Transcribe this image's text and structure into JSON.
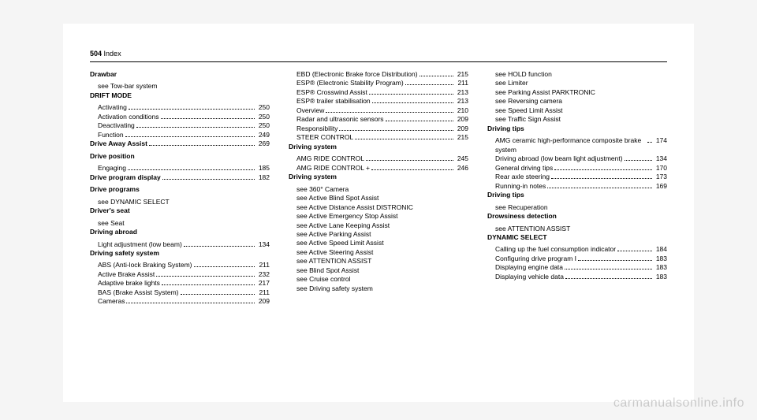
{
  "header": {
    "page": "504",
    "section": "Index"
  },
  "watermark": "carmanualsonline.info",
  "col1": [
    {
      "type": "heading",
      "text": "Drawbar"
    },
    {
      "type": "see",
      "text": "see Tow-bar system"
    },
    {
      "type": "heading",
      "text": "DRIFT MODE"
    },
    {
      "type": "sub",
      "label": "Activating",
      "page": "250"
    },
    {
      "type": "sub",
      "label": "Activation conditions",
      "page": "250"
    },
    {
      "type": "sub",
      "label": "Deactivating",
      "page": "250"
    },
    {
      "type": "sub",
      "label": "Function",
      "page": "249"
    },
    {
      "type": "headline",
      "label": "Drive Away Assist",
      "page": "269"
    },
    {
      "type": "heading",
      "text": "Drive position"
    },
    {
      "type": "sub",
      "label": "Engaging",
      "page": "185"
    },
    {
      "type": "headline",
      "label": "Drive program display",
      "page": "182"
    },
    {
      "type": "heading",
      "text": "Drive programs"
    },
    {
      "type": "see",
      "text": "see DYNAMIC SELECT"
    },
    {
      "type": "heading",
      "text": "Driver's seat"
    },
    {
      "type": "see",
      "text": "see Seat"
    },
    {
      "type": "heading",
      "text": "Driving abroad"
    },
    {
      "type": "sub",
      "label": "Light adjustment (low beam)",
      "page": "134"
    },
    {
      "type": "heading",
      "text": "Driving safety system"
    },
    {
      "type": "sub",
      "label": "ABS (Anti-lock Braking System)",
      "page": "211"
    },
    {
      "type": "sub",
      "label": "Active Brake Assist",
      "page": "232"
    },
    {
      "type": "sub",
      "label": "Adaptive brake lights",
      "page": "217"
    },
    {
      "type": "sub",
      "label": "BAS (Brake Assist System)",
      "page": "211"
    },
    {
      "type": "sub",
      "label": "Cameras",
      "page": "209"
    }
  ],
  "col2": [
    {
      "type": "sub",
      "label": "EBD (Electronic Brake force Distribu­tion)",
      "page": "215"
    },
    {
      "type": "sub",
      "label": "ESP® (Electronic Stability Program)",
      "page": "211"
    },
    {
      "type": "sub",
      "label": "ESP® Crosswind Assist",
      "page": "213"
    },
    {
      "type": "sub",
      "label": "ESP® trailer stabilisation",
      "page": "213"
    },
    {
      "type": "sub",
      "label": "Overview",
      "page": "210"
    },
    {
      "type": "sub",
      "label": "Radar and ultrasonic sensors",
      "page": "209"
    },
    {
      "type": "sub",
      "label": "Responsibility",
      "page": "209"
    },
    {
      "type": "sub",
      "label": "STEER CONTROL",
      "page": "215"
    },
    {
      "type": "heading",
      "text": "Driving system"
    },
    {
      "type": "sub",
      "label": "AMG RIDE CONTROL",
      "page": "245"
    },
    {
      "type": "sub",
      "label": "AMG RIDE CONTROL +",
      "page": "246"
    },
    {
      "type": "heading",
      "text": "Driving system"
    },
    {
      "type": "see",
      "text": "see 360° Camera"
    },
    {
      "type": "see",
      "text": "see Active Blind Spot Assist"
    },
    {
      "type": "see",
      "text": "see Active Distance Assist DISTRONIC"
    },
    {
      "type": "see",
      "text": "see Active Emergency Stop Assist"
    },
    {
      "type": "see",
      "text": "see Active Lane Keeping Assist"
    },
    {
      "type": "see",
      "text": "see Active Parking Assist"
    },
    {
      "type": "see",
      "text": "see Active Speed Limit Assist"
    },
    {
      "type": "see",
      "text": "see Active Steering Assist"
    },
    {
      "type": "see",
      "text": "see ATTENTION ASSIST"
    },
    {
      "type": "see",
      "text": "see Blind Spot Assist"
    },
    {
      "type": "see",
      "text": "see Cruise control"
    },
    {
      "type": "see",
      "text": "see Driving safety system"
    }
  ],
  "col3": [
    {
      "type": "see",
      "text": "see HOLD function"
    },
    {
      "type": "see",
      "text": "see Limiter"
    },
    {
      "type": "see",
      "text": "see Parking Assist PARKTRONIC"
    },
    {
      "type": "see",
      "text": "see Reversing camera"
    },
    {
      "type": "see",
      "text": "see Speed Limit Assist"
    },
    {
      "type": "see",
      "text": "see Traffic Sign Assist"
    },
    {
      "type": "heading",
      "text": "Driving tips"
    },
    {
      "type": "sub",
      "label": "AMG ceramic high-performance com­posite brake system",
      "page": "174"
    },
    {
      "type": "sub",
      "label": "Driving abroad (low beam light adjust­ment)",
      "page": "134"
    },
    {
      "type": "sub",
      "label": "General driving tips",
      "page": "170"
    },
    {
      "type": "sub",
      "label": "Rear axle steering",
      "page": "173"
    },
    {
      "type": "sub",
      "label": "Running-in notes",
      "page": "169"
    },
    {
      "type": "heading",
      "text": "Driving tips"
    },
    {
      "type": "see",
      "text": "see Recuperation"
    },
    {
      "type": "heading",
      "text": "Drowsiness detection"
    },
    {
      "type": "see",
      "text": "see ATTENTION ASSIST"
    },
    {
      "type": "heading",
      "text": "DYNAMIC SELECT"
    },
    {
      "type": "sub",
      "label": "Calling up the fuel consumption indi­cator",
      "page": "184"
    },
    {
      "type": "sub",
      "label": "Configuring drive program I",
      "page": "183"
    },
    {
      "type": "sub",
      "label": "Displaying engine data",
      "page": "183"
    },
    {
      "type": "sub",
      "label": "Displaying vehicle data",
      "page": "183"
    }
  ]
}
